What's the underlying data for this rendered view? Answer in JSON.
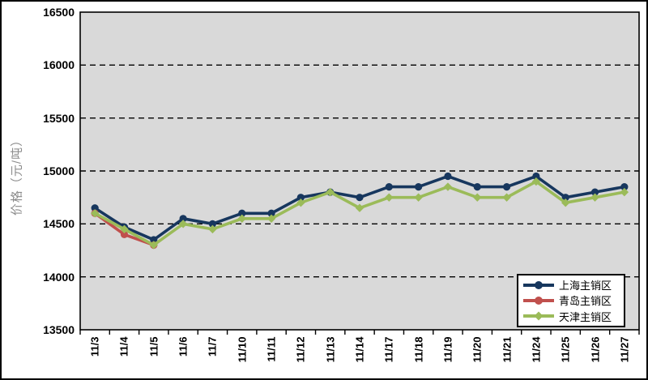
{
  "chart_data": {
    "type": "line",
    "title": "",
    "xlabel": "",
    "ylabel": "价格（元/吨）",
    "ylim": [
      13500,
      16500
    ],
    "y_step": 500,
    "y_ticks": [
      "16500",
      "16000",
      "15500",
      "15000",
      "14500",
      "14000",
      "13500"
    ],
    "grid": "dashed-horizontal",
    "plot_bg": "#d9d9d9",
    "legend_position": "bottom-right-inside",
    "categories": [
      "11/3",
      "11/4",
      "11/5",
      "11/6",
      "11/7",
      "11/10",
      "11/11",
      "11/12",
      "11/13",
      "11/14",
      "11/17",
      "11/18",
      "11/19",
      "11/20",
      "11/21",
      "11/24",
      "11/25",
      "11/26",
      "11/27"
    ],
    "series": [
      {
        "name": "上海主销区",
        "color": "#17375e",
        "marker": "circle",
        "values": [
          14650,
          14470,
          14350,
          14550,
          14500,
          14600,
          14600,
          14750,
          14800,
          14750,
          14850,
          14850,
          14950,
          14850,
          14850,
          14950,
          14750,
          14800,
          14850
        ]
      },
      {
        "name": "青岛主销区",
        "color": "#c0504d",
        "marker": "circle",
        "values": [
          14600,
          14400,
          14300,
          null,
          null,
          null,
          null,
          null,
          null,
          null,
          null,
          null,
          null,
          null,
          null,
          null,
          null,
          null,
          null
        ]
      },
      {
        "name": "天津主销区",
        "color": "#9bbb59",
        "marker": "diamond",
        "values": [
          14600,
          14450,
          14300,
          14500,
          14450,
          14550,
          14550,
          14700,
          14800,
          14650,
          14750,
          14750,
          14850,
          14750,
          14750,
          14900,
          14700,
          14750,
          14800
        ]
      }
    ]
  }
}
